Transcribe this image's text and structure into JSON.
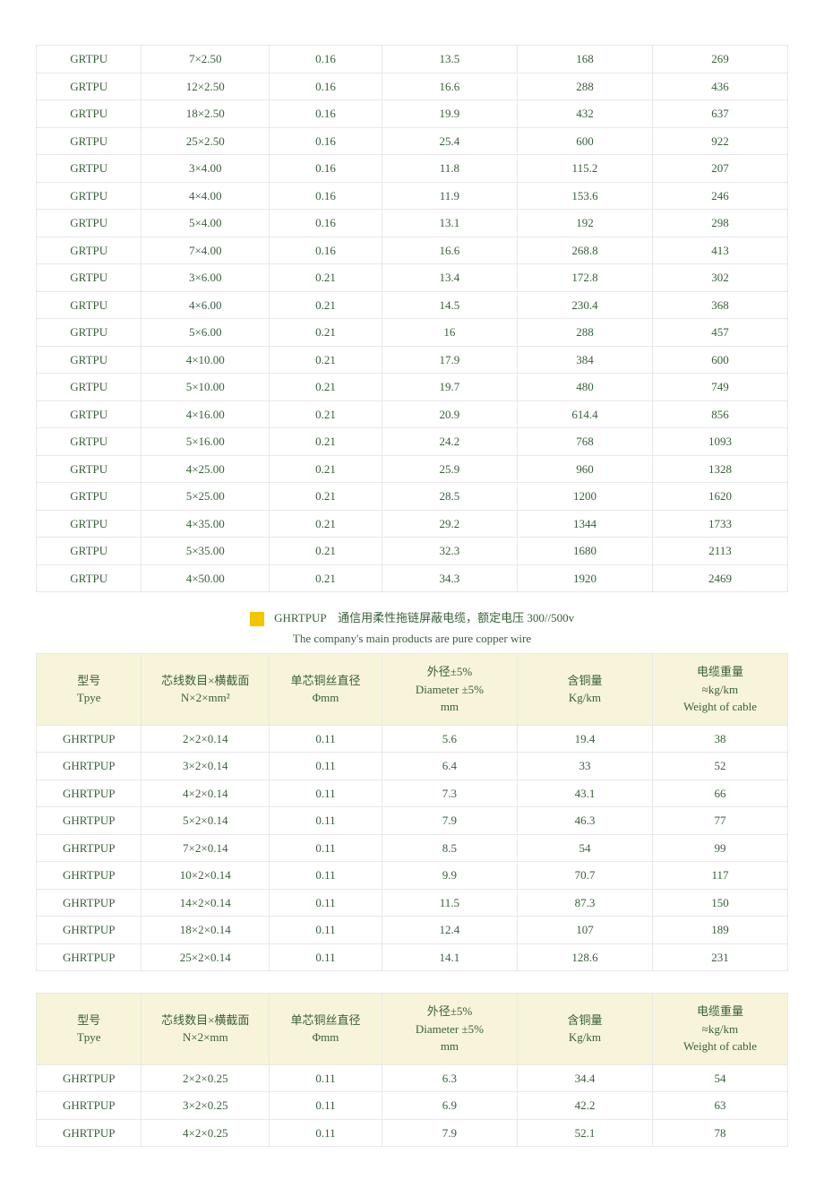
{
  "colors": {
    "text": "#3a5f3a",
    "header_bg": "#f7f4d9",
    "border": "#e8e8e8",
    "accent_sq": "#f5c400",
    "page_bg": "#ffffff"
  },
  "table1": {
    "rows": [
      [
        "GRTPU",
        "7×2.50",
        "0.16",
        "13.5",
        "168",
        "269"
      ],
      [
        "GRTPU",
        "12×2.50",
        "0.16",
        "16.6",
        "288",
        "436"
      ],
      [
        "GRTPU",
        "18×2.50",
        "0.16",
        "19.9",
        "432",
        "637"
      ],
      [
        "GRTPU",
        "25×2.50",
        "0.16",
        "25.4",
        "600",
        "922"
      ],
      [
        "GRTPU",
        "3×4.00",
        "0.16",
        "11.8",
        "115.2",
        "207"
      ],
      [
        "GRTPU",
        "4×4.00",
        "0.16",
        "11.9",
        "153.6",
        "246"
      ],
      [
        "GRTPU",
        "5×4.00",
        "0.16",
        "13.1",
        "192",
        "298"
      ],
      [
        "GRTPU",
        "7×4.00",
        "0.16",
        "16.6",
        "268.8",
        "413"
      ],
      [
        "GRTPU",
        "3×6.00",
        "0.21",
        "13.4",
        "172.8",
        "302"
      ],
      [
        "GRTPU",
        "4×6.00",
        "0.21",
        "14.5",
        "230.4",
        "368"
      ],
      [
        "GRTPU",
        "5×6.00",
        "0.21",
        "16",
        "288",
        "457"
      ],
      [
        "GRTPU",
        "4×10.00",
        "0.21",
        "17.9",
        "384",
        "600"
      ],
      [
        "GRTPU",
        "5×10.00",
        "0.21",
        "19.7",
        "480",
        "749"
      ],
      [
        "GRTPU",
        "4×16.00",
        "0.21",
        "20.9",
        "614.4",
        "856"
      ],
      [
        "GRTPU",
        "5×16.00",
        "0.21",
        "24.2",
        "768",
        "1093"
      ],
      [
        "GRTPU",
        "4×25.00",
        "0.21",
        "25.9",
        "960",
        "1328"
      ],
      [
        "GRTPU",
        "5×25.00",
        "0.21",
        "28.5",
        "1200",
        "1620"
      ],
      [
        "GRTPU",
        "4×35.00",
        "0.21",
        "29.2",
        "1344",
        "1733"
      ],
      [
        "GRTPU",
        "5×35.00",
        "0.21",
        "32.3",
        "1680",
        "2113"
      ],
      [
        "GRTPU",
        "4×50.00",
        "0.21",
        "34.3",
        "1920",
        "2469"
      ]
    ]
  },
  "heading": {
    "code": "GHRTPUP",
    "desc": "通信用柔性拖链屏蔽电缆，额定电压 300//500v"
  },
  "subheading": "The company's main products are pure copper wire",
  "headers2": {
    "c0a": "型号",
    "c0b": "Tpye",
    "c1a": "芯线数目×横截面",
    "c1b": "N×2×mm²",
    "c2a": "单芯铜丝直径",
    "c2b": "Φmm",
    "c3a": "外径±5%",
    "c3b": "Diameter ±5%",
    "c3c": "mm",
    "c4a": "含铜量",
    "c4b": "Kg/km",
    "c5a": "电缆重量",
    "c5b": "≈kg/km",
    "c5c": "Weight of cable"
  },
  "table2": {
    "rows": [
      [
        "GHRTPUP",
        "2×2×0.14",
        "0.11",
        "5.6",
        "19.4",
        "38"
      ],
      [
        "GHRTPUP",
        "3×2×0.14",
        "0.11",
        "6.4",
        "33",
        "52"
      ],
      [
        "GHRTPUP",
        "4×2×0.14",
        "0.11",
        "7.3",
        "43.1",
        "66"
      ],
      [
        "GHRTPUP",
        "5×2×0.14",
        "0.11",
        "7.9",
        "46.3",
        "77"
      ],
      [
        "GHRTPUP",
        "7×2×0.14",
        "0.11",
        "8.5",
        "54",
        "99"
      ],
      [
        "GHRTPUP",
        "10×2×0.14",
        "0.11",
        "9.9",
        "70.7",
        "117"
      ],
      [
        "GHRTPUP",
        "14×2×0.14",
        "0.11",
        "11.5",
        "87.3",
        "150"
      ],
      [
        "GHRTPUP",
        "18×2×0.14",
        "0.11",
        "12.4",
        "107",
        "189"
      ],
      [
        "GHRTPUP",
        "25×2×0.14",
        "0.11",
        "14.1",
        "128.6",
        "231"
      ]
    ]
  },
  "headers3": {
    "c0a": "型号",
    "c0b": "Tpye",
    "c1a": "芯线数目×横截面",
    "c1b": "N×2×mm",
    "c2a": "单芯铜丝直径",
    "c2b": "Φmm",
    "c3a": "外径±5%",
    "c3b": "Diameter ±5%",
    "c3c": "mm",
    "c4a": "含铜量",
    "c4b": "Kg/km",
    "c5a": "电缆重量",
    "c5b": "≈kg/km",
    "c5c": "Weight of cable"
  },
  "table3": {
    "rows": [
      [
        "GHRTPUP",
        "2×2×0.25",
        "0.11",
        "6.3",
        "34.4",
        "54"
      ],
      [
        "GHRTPUP",
        "3×2×0.25",
        "0.11",
        "6.9",
        "42.2",
        "63"
      ],
      [
        "GHRTPUP",
        "4×2×0.25",
        "0.11",
        "7.9",
        "52.1",
        "78"
      ]
    ]
  }
}
